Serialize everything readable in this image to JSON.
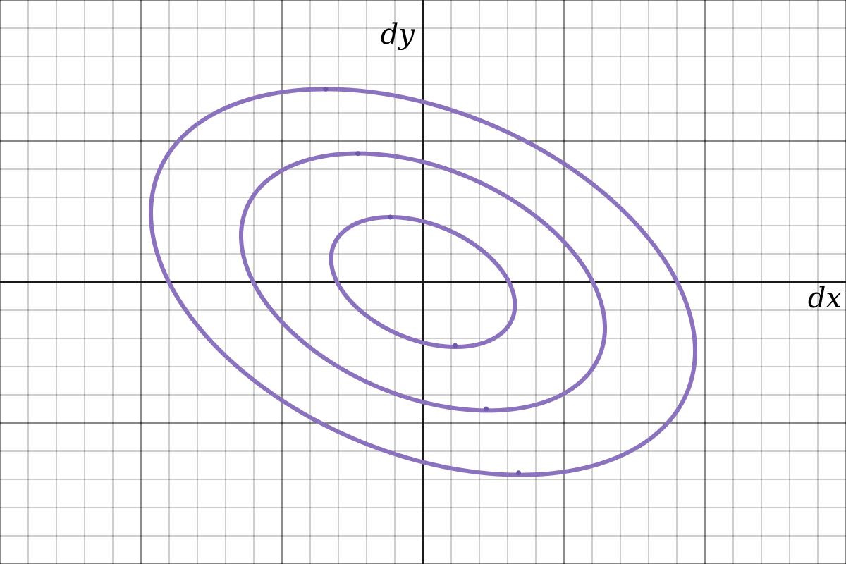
{
  "chart_data": {
    "type": "line",
    "title": "",
    "xlabel": "dx",
    "ylabel": "dy",
    "xlim": [
      -15,
      15
    ],
    "ylim": [
      -10,
      10
    ],
    "grid": true,
    "grid_minor_step": 1,
    "grid_major_step": 5,
    "color": "#8b72bf",
    "series": [
      {
        "type": "ellipse",
        "level": 1,
        "center": [
          0,
          0
        ],
        "extrema": {
          "top": [
            -1.16,
            2.3
          ],
          "bottom": [
            1.14,
            -2.25
          ]
        },
        "x_extents": [
          -3.26,
          3.18
        ]
      },
      {
        "type": "ellipse",
        "level": 2,
        "center": [
          0,
          0
        ],
        "extrema": {
          "top": [
            -2.31,
            4.56
          ],
          "bottom": [
            2.24,
            -4.5
          ]
        },
        "x_extents": [
          -6.45,
          6.38
        ]
      },
      {
        "type": "ellipse",
        "level": 3,
        "center": [
          0,
          0
        ],
        "extrema": {
          "top": [
            -3.45,
            6.84
          ],
          "bottom": [
            3.39,
            -6.77
          ]
        },
        "x_extents": [
          -9.65,
          9.63
        ]
      }
    ]
  }
}
